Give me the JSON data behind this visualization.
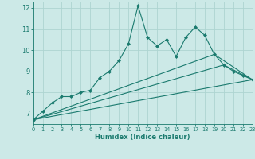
{
  "xlabel": "Humidex (Indice chaleur)",
  "ylabel": "",
  "bg_color": "#cce9e7",
  "grid_color": "#aed4d1",
  "line_color": "#1a7a6e",
  "xlim": [
    0,
    23
  ],
  "ylim": [
    6.5,
    12.3
  ],
  "xticks": [
    0,
    1,
    2,
    3,
    4,
    5,
    6,
    7,
    8,
    9,
    10,
    11,
    12,
    13,
    14,
    15,
    16,
    17,
    18,
    19,
    20,
    21,
    22,
    23
  ],
  "yticks": [
    7,
    8,
    9,
    10,
    11,
    12
  ],
  "series1_x": [
    0,
    1,
    2,
    3,
    4,
    5,
    6,
    7,
    8,
    9,
    10,
    11,
    12,
    13,
    14,
    15,
    16,
    17,
    18,
    19,
    20,
    21,
    22,
    23
  ],
  "series1_y": [
    6.7,
    7.1,
    7.5,
    7.8,
    7.8,
    8.0,
    8.1,
    8.7,
    9.0,
    9.5,
    10.3,
    12.1,
    10.6,
    10.2,
    10.5,
    9.7,
    10.6,
    11.1,
    10.7,
    9.8,
    9.3,
    9.0,
    8.8,
    8.6
  ],
  "series2_x": [
    0,
    23
  ],
  "series2_y": [
    6.7,
    8.6
  ],
  "series3_x": [
    0,
    19,
    23
  ],
  "series3_y": [
    6.7,
    9.8,
    8.6
  ],
  "series4_x": [
    0,
    20,
    23
  ],
  "series4_y": [
    6.7,
    9.3,
    8.6
  ]
}
